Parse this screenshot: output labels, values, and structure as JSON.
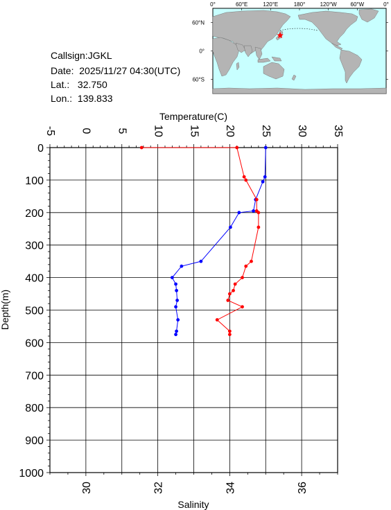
{
  "station": {
    "callsign_label": "Callsign:",
    "callsign": "JGKL",
    "date_label": "Date:",
    "date": "2025/11/27 04:30(UTC)",
    "lat_label": "Lat.:",
    "lat": "32.750",
    "lon_label": "Lon.:",
    "lon": "139.833"
  },
  "map": {
    "lon_ticks": [
      "0°",
      "60°E",
      "120°E",
      "180°",
      "120°W",
      "60°W",
      "0°"
    ],
    "lat_ticks": [
      "60°N",
      "0°",
      "60°S"
    ],
    "ocean_color": "#c8ffff",
    "land_color": "#b4b4b4",
    "marker_color": "#ff0000",
    "marker_icon": "star-icon",
    "marker_lat": 32.75,
    "marker_lon": 139.833
  },
  "chart_data": {
    "type": "line",
    "title": "",
    "top_axis_label": "Temperature(C)",
    "bottom_axis_label": "Salinity",
    "ylabel": "Depth(m)",
    "temperature_lim": [
      -5,
      35
    ],
    "temperature_ticks": [
      "-5",
      "0",
      "5",
      "10",
      "15",
      "20",
      "25",
      "30",
      "35"
    ],
    "salinity_lim": [
      29,
      37
    ],
    "salinity_ticks": [
      "30",
      "32",
      "34",
      "36"
    ],
    "depth_lim": [
      0,
      1000
    ],
    "depth_ticks": [
      "0",
      "100",
      "200",
      "300",
      "400",
      "500",
      "600",
      "700",
      "800",
      "900",
      "1000"
    ],
    "grid": true,
    "series": [
      {
        "name": "",
        "axis": "temperature",
        "color": "#0000ff",
        "points": [
          {
            "x": 25.0,
            "y": 0
          },
          {
            "x": 24.9,
            "y": 90
          },
          {
            "x": 24.6,
            "y": 105
          },
          {
            "x": 23.6,
            "y": 160
          },
          {
            "x": 23.3,
            "y": 195
          },
          {
            "x": 21.3,
            "y": 200
          },
          {
            "x": 20.1,
            "y": 245
          },
          {
            "x": 16.0,
            "y": 350
          },
          {
            "x": 13.3,
            "y": 365
          },
          {
            "x": 12.0,
            "y": 400
          },
          {
            "x": 12.5,
            "y": 420
          },
          {
            "x": 12.6,
            "y": 440
          },
          {
            "x": 12.7,
            "y": 470
          },
          {
            "x": 12.5,
            "y": 490
          },
          {
            "x": 12.8,
            "y": 530
          },
          {
            "x": 12.6,
            "y": 565
          },
          {
            "x": 12.5,
            "y": 575
          }
        ]
      },
      {
        "name": "",
        "axis": "salinity",
        "color": "#ff0000",
        "points": [
          {
            "x": 31.55,
            "y": 0
          },
          {
            "x": 34.2,
            "y": 0
          },
          {
            "x": 34.4,
            "y": 90
          },
          {
            "x": 34.45,
            "y": 100
          },
          {
            "x": 34.75,
            "y": 160
          },
          {
            "x": 34.75,
            "y": 195
          },
          {
            "x": 34.8,
            "y": 200
          },
          {
            "x": 34.8,
            "y": 245
          },
          {
            "x": 34.6,
            "y": 350
          },
          {
            "x": 34.45,
            "y": 365
          },
          {
            "x": 34.35,
            "y": 400
          },
          {
            "x": 34.15,
            "y": 420
          },
          {
            "x": 34.1,
            "y": 440
          },
          {
            "x": 34.0,
            "y": 450
          },
          {
            "x": 33.95,
            "y": 470
          },
          {
            "x": 34.35,
            "y": 490
          },
          {
            "x": 33.65,
            "y": 530
          },
          {
            "x": 34.0,
            "y": 565
          },
          {
            "x": 34.0,
            "y": 575
          }
        ]
      }
    ]
  }
}
